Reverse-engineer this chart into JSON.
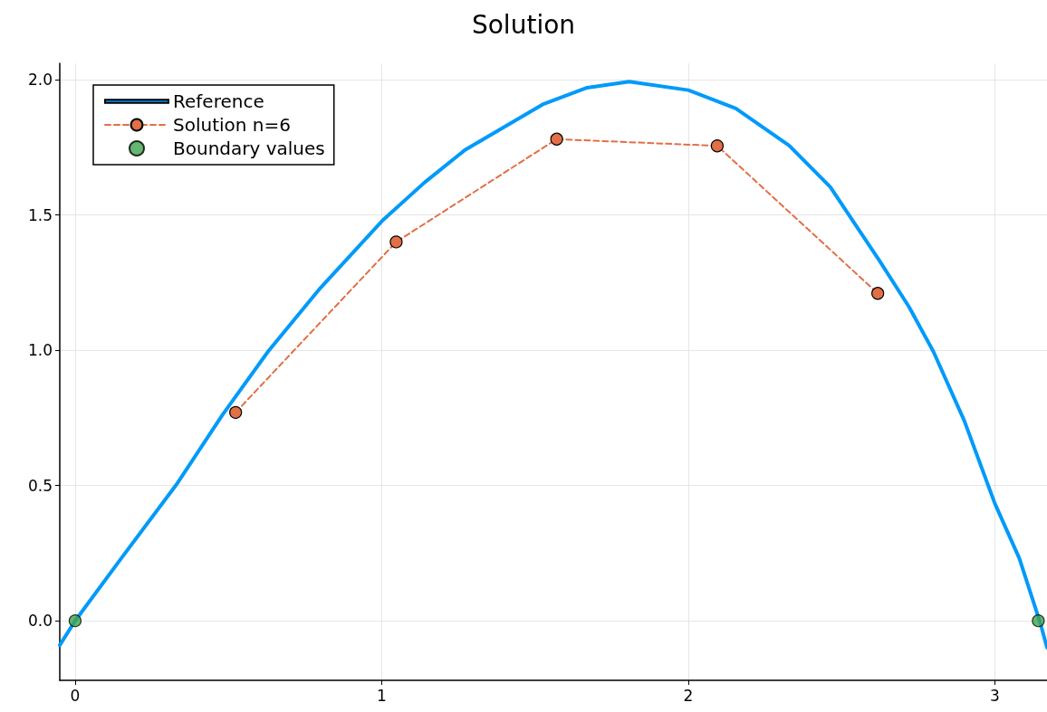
{
  "chart_data": {
    "type": "line",
    "title": "Solution",
    "series": [
      {
        "name": "Reference",
        "color": "#009af9",
        "marker": "none",
        "line_style": "solid",
        "x": [
          -0.05,
          0,
          0.15,
          0.334,
          0.48,
          0.63,
          0.8,
          1.005,
          1.14,
          1.273,
          1.525,
          1.67,
          1.807,
          2.0,
          2.155,
          2.329,
          2.463,
          2.624,
          2.72,
          2.799,
          2.9,
          3.0,
          3.08,
          3.148,
          3.17
        ],
        "values": [
          -0.09,
          0,
          0.23,
          0.509,
          0.76,
          0.996,
          1.23,
          1.482,
          1.62,
          1.741,
          1.908,
          1.97,
          1.992,
          1.961,
          1.893,
          1.756,
          1.603,
          1.33,
          1.16,
          0.996,
          0.74,
          0.433,
          0.23,
          -0.008,
          -0.099
        ]
      },
      {
        "name": "Solution n=6",
        "color": "#e26f46",
        "marker": "circle",
        "line_style": "dashed",
        "x": [
          0.5236,
          1.0472,
          1.5708,
          2.0944,
          2.618
        ],
        "values": [
          0.77,
          1.4,
          1.78,
          1.755,
          1.21
        ]
      },
      {
        "name": "Boundary values",
        "type": "scatter",
        "color": "#3da44d",
        "marker": "circle",
        "x": [
          0,
          3.1416
        ],
        "values": [
          0,
          0
        ]
      }
    ],
    "xlim": [
      -0.05,
      3.17
    ],
    "xticks": [
      0,
      1,
      2,
      3
    ],
    "ylim": [
      -0.22,
      2.06
    ],
    "yticks": [
      {
        "value": 0,
        "label": "0.0"
      },
      0.5,
      {
        "value": 1,
        "label": "1.0"
      },
      1.5,
      {
        "value": 2,
        "label": "2.0"
      }
    ],
    "grid": true,
    "legend": "top left"
  }
}
